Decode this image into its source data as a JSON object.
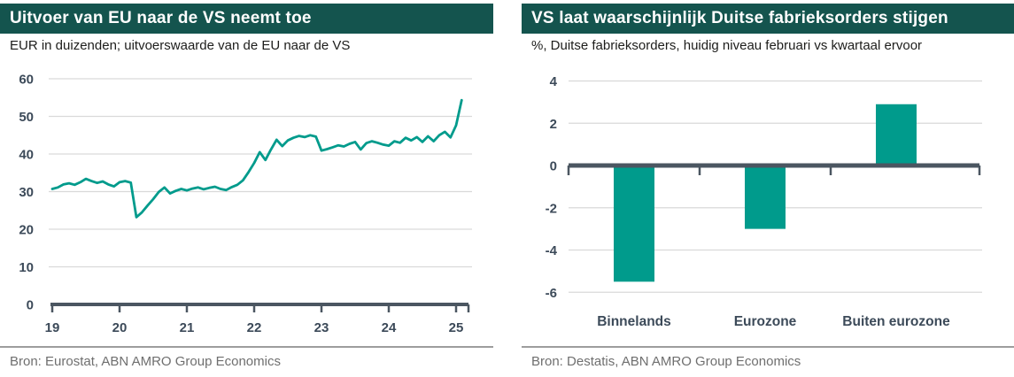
{
  "style": {
    "title_bar_bg": "#14544e",
    "accent_teal": "#009b8c",
    "grid_color": "#d9d9d9",
    "axis_color": "#4b5661",
    "tick_label_color": "#3c4a59"
  },
  "chart_data": [
    {
      "type": "line",
      "title": "Uitvoer van EU naar de VS neemt toe",
      "subtitle": "EUR in duizenden; uitvoerswaarde van de EU naar de VS",
      "source": "Bron: Eurostat, ABN AMRO Group Economics",
      "color": "#009b8c",
      "x_tick_labels": [
        "19",
        "20",
        "21",
        "22",
        "23",
        "24",
        "25"
      ],
      "x_start": "2019-01",
      "x_frequency": "monthly",
      "ylim": [
        0,
        60
      ],
      "y_ticks": [
        60,
        50,
        40,
        30,
        20,
        10,
        0
      ],
      "grid": true,
      "legend": "none",
      "series": [
        {
          "name": "Uitvoerswaarde van de EU naar de VS",
          "values": [
            30.7,
            31.1,
            31.9,
            32.2,
            31.8,
            32.5,
            33.4,
            32.8,
            32.3,
            32.7,
            31.9,
            31.4,
            32.5,
            32.8,
            32.4,
            23.2,
            24.5,
            26.3,
            28.0,
            29.9,
            31.1,
            29.5,
            30.2,
            30.7,
            30.3,
            30.8,
            31.1,
            30.6,
            31.0,
            31.3,
            30.7,
            30.4,
            31.2,
            31.8,
            33.0,
            35.2,
            37.6,
            40.5,
            38.4,
            41.2,
            43.8,
            42.1,
            43.6,
            44.3,
            44.8,
            44.5,
            45.0,
            44.6,
            40.9,
            41.3,
            41.8,
            42.3,
            42.0,
            42.7,
            43.2,
            41.2,
            42.9,
            43.4,
            43.0,
            42.5,
            42.2,
            43.4,
            43.0,
            44.3,
            43.6,
            44.5,
            43.2,
            44.7,
            43.4,
            45.0,
            45.9,
            44.4,
            47.6,
            54.3
          ]
        }
      ]
    },
    {
      "type": "bar",
      "title": "VS laat waarschijnlijk Duitse fabrieksorders stijgen",
      "subtitle": "%, Duitse fabrieksorders, huidig niveau februari vs kwartaal ervoor",
      "source": "Bron: Destatis, ABN AMRO Group Economics",
      "color": "#009b8c",
      "categories": [
        "Binnelands",
        "Eurozone",
        "Buiten eurozone"
      ],
      "values": [
        -5.5,
        -3.0,
        2.9
      ],
      "ylim": [
        -6,
        4
      ],
      "y_ticks": [
        4,
        2,
        0,
        -2,
        -4,
        -6
      ],
      "grid": true,
      "legend": "none"
    }
  ]
}
